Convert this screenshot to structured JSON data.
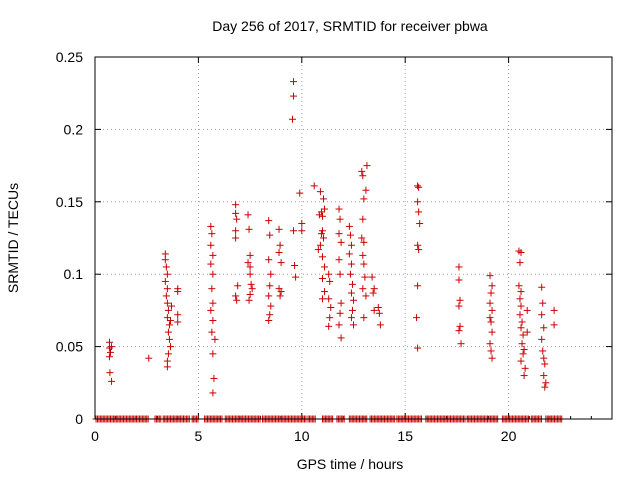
{
  "chart_data": {
    "type": "scatter",
    "title": "Day 256 of 2017, SRMTID for receiver pbwa",
    "xlabel": "GPS time / hours",
    "ylabel": "SRMTID / TECUs",
    "xlim": [
      0,
      25
    ],
    "ylim": [
      0,
      0.25
    ],
    "grid": true,
    "marker": "+",
    "marker_color": "#cc0000",
    "x_ticks": [
      {
        "value": 0,
        "label": "0"
      },
      {
        "value": 5,
        "label": "5"
      },
      {
        "value": 10,
        "label": "10"
      },
      {
        "value": 15,
        "label": "15"
      },
      {
        "value": 20,
        "label": "20"
      }
    ],
    "y_ticks": [
      {
        "value": 0,
        "label": "0"
      },
      {
        "value": 0.05,
        "label": "0.05"
      },
      {
        "value": 0.1,
        "label": "0.1"
      },
      {
        "value": 0.15,
        "label": "0.15"
      },
      {
        "value": 0.2,
        "label": "0.2"
      },
      {
        "value": 0.25,
        "label": "0.25"
      }
    ],
    "series": [
      {
        "name": "pbwa",
        "points": [
          [
            0.7,
            0.053
          ],
          [
            0.7,
            0.049
          ],
          [
            0.75,
            0.046
          ],
          [
            0.7,
            0.043
          ],
          [
            0.8,
            0.05
          ],
          [
            0.72,
            0.032
          ],
          [
            0.8,
            0.026
          ],
          [
            2.6,
            0.042
          ],
          [
            3.4,
            0.114
          ],
          [
            3.4,
            0.11
          ],
          [
            3.45,
            0.105
          ],
          [
            3.5,
            0.1
          ],
          [
            3.4,
            0.095
          ],
          [
            3.5,
            0.09
          ],
          [
            3.45,
            0.085
          ],
          [
            3.5,
            0.08
          ],
          [
            3.55,
            0.075
          ],
          [
            3.5,
            0.07
          ],
          [
            3.6,
            0.065
          ],
          [
            3.55,
            0.06
          ],
          [
            3.6,
            0.055
          ],
          [
            3.65,
            0.05
          ],
          [
            3.55,
            0.045
          ],
          [
            3.5,
            0.04
          ],
          [
            3.5,
            0.036
          ],
          [
            3.7,
            0.078
          ],
          [
            3.65,
            0.068
          ],
          [
            4.0,
            0.09
          ],
          [
            4.0,
            0.088
          ],
          [
            4.0,
            0.072
          ],
          [
            4.0,
            0.067
          ],
          [
            5.6,
            0.133
          ],
          [
            5.65,
            0.128
          ],
          [
            5.6,
            0.12
          ],
          [
            5.7,
            0.113
          ],
          [
            5.6,
            0.107
          ],
          [
            5.7,
            0.1
          ],
          [
            5.65,
            0.09
          ],
          [
            5.7,
            0.08
          ],
          [
            5.6,
            0.075
          ],
          [
            5.7,
            0.068
          ],
          [
            5.65,
            0.06
          ],
          [
            5.8,
            0.055
          ],
          [
            5.7,
            0.045
          ],
          [
            5.75,
            0.028
          ],
          [
            5.7,
            0.018
          ],
          [
            6.8,
            0.148
          ],
          [
            6.8,
            0.142
          ],
          [
            6.85,
            0.138
          ],
          [
            6.8,
            0.13
          ],
          [
            6.8,
            0.125
          ],
          [
            6.9,
            0.092
          ],
          [
            6.8,
            0.085
          ],
          [
            6.85,
            0.082
          ],
          [
            7.4,
            0.141
          ],
          [
            7.45,
            0.131
          ],
          [
            7.5,
            0.113
          ],
          [
            7.4,
            0.108
          ],
          [
            7.5,
            0.1
          ],
          [
            7.55,
            0.093
          ],
          [
            7.5,
            0.086
          ],
          [
            7.45,
            0.082
          ],
          [
            7.6,
            0.09
          ],
          [
            7.5,
            0.105
          ],
          [
            8.4,
            0.137
          ],
          [
            8.45,
            0.127
          ],
          [
            8.4,
            0.11
          ],
          [
            8.5,
            0.1
          ],
          [
            8.45,
            0.092
          ],
          [
            8.4,
            0.085
          ],
          [
            8.5,
            0.078
          ],
          [
            8.45,
            0.072
          ],
          [
            8.4,
            0.068
          ],
          [
            8.9,
            0.131
          ],
          [
            8.95,
            0.12
          ],
          [
            8.9,
            0.115
          ],
          [
            9.0,
            0.108
          ],
          [
            8.9,
            0.09
          ],
          [
            8.95,
            0.085
          ],
          [
            9.0,
            0.088
          ],
          [
            9.6,
            0.233
          ],
          [
            9.6,
            0.223
          ],
          [
            9.55,
            0.207
          ],
          [
            9.6,
            0.13
          ],
          [
            9.65,
            0.106
          ],
          [
            9.7,
            0.098
          ],
          [
            9.9,
            0.156
          ],
          [
            10.0,
            0.135
          ],
          [
            10.0,
            0.13
          ],
          [
            10.6,
            0.161
          ],
          [
            10.9,
            0.157
          ],
          [
            10.85,
            0.141
          ],
          [
            10.95,
            0.143
          ],
          [
            11.0,
            0.14
          ],
          [
            11.0,
            0.13
          ],
          [
            10.95,
            0.128
          ],
          [
            11.05,
            0.125
          ],
          [
            10.9,
            0.12
          ],
          [
            11.0,
            0.112
          ],
          [
            11.1,
            0.105
          ],
          [
            11.0,
            0.097
          ],
          [
            11.1,
            0.088
          ],
          [
            11.0,
            0.083
          ],
          [
            11.1,
            0.145
          ],
          [
            11.05,
            0.152
          ],
          [
            10.8,
            0.117
          ],
          [
            11.3,
            0.1
          ],
          [
            11.35,
            0.095
          ],
          [
            11.3,
            0.083
          ],
          [
            11.4,
            0.077
          ],
          [
            11.35,
            0.07
          ],
          [
            11.3,
            0.064
          ],
          [
            11.8,
            0.145
          ],
          [
            11.85,
            0.138
          ],
          [
            11.8,
            0.128
          ],
          [
            11.9,
            0.122
          ],
          [
            11.8,
            0.11
          ],
          [
            11.85,
            0.1
          ],
          [
            11.9,
            0.08
          ],
          [
            11.85,
            0.073
          ],
          [
            11.8,
            0.065
          ],
          [
            11.9,
            0.056
          ],
          [
            12.3,
            0.133
          ],
          [
            12.35,
            0.127
          ],
          [
            12.4,
            0.12
          ],
          [
            12.3,
            0.114
          ],
          [
            12.4,
            0.107
          ],
          [
            12.35,
            0.1
          ],
          [
            12.45,
            0.093
          ],
          [
            12.4,
            0.087
          ],
          [
            12.5,
            0.082
          ],
          [
            12.45,
            0.075
          ],
          [
            12.4,
            0.07
          ],
          [
            12.5,
            0.065
          ],
          [
            12.9,
            0.171
          ],
          [
            12.95,
            0.168
          ],
          [
            13.0,
            0.152
          ],
          [
            12.95,
            0.138
          ],
          [
            12.9,
            0.125
          ],
          [
            13.0,
            0.122
          ],
          [
            12.95,
            0.113
          ],
          [
            13.0,
            0.107
          ],
          [
            13.05,
            0.098
          ],
          [
            12.95,
            0.09
          ],
          [
            13.1,
            0.085
          ],
          [
            13.0,
            0.07
          ],
          [
            13.15,
            0.175
          ],
          [
            13.1,
            0.158
          ],
          [
            13.4,
            0.098
          ],
          [
            13.5,
            0.09
          ],
          [
            13.45,
            0.087
          ],
          [
            13.5,
            0.075
          ],
          [
            13.7,
            0.077
          ],
          [
            13.75,
            0.073
          ],
          [
            13.8,
            0.065
          ],
          [
            15.6,
            0.161
          ],
          [
            15.65,
            0.16
          ],
          [
            15.6,
            0.15
          ],
          [
            15.65,
            0.143
          ],
          [
            15.7,
            0.135
          ],
          [
            15.6,
            0.12
          ],
          [
            15.65,
            0.117
          ],
          [
            15.6,
            0.092
          ],
          [
            15.55,
            0.07
          ],
          [
            15.6,
            0.049
          ],
          [
            17.6,
            0.105
          ],
          [
            17.6,
            0.096
          ],
          [
            17.65,
            0.082
          ],
          [
            17.6,
            0.078
          ],
          [
            17.65,
            0.064
          ],
          [
            17.6,
            0.061
          ],
          [
            17.7,
            0.052
          ],
          [
            19.1,
            0.099
          ],
          [
            19.2,
            0.092
          ],
          [
            19.15,
            0.087
          ],
          [
            19.1,
            0.08
          ],
          [
            19.2,
            0.075
          ],
          [
            19.1,
            0.07
          ],
          [
            19.15,
            0.067
          ],
          [
            19.2,
            0.06
          ],
          [
            19.1,
            0.052
          ],
          [
            19.15,
            0.047
          ],
          [
            19.2,
            0.042
          ],
          [
            20.5,
            0.116
          ],
          [
            20.6,
            0.115
          ],
          [
            20.55,
            0.108
          ],
          [
            20.5,
            0.092
          ],
          [
            20.6,
            0.088
          ],
          [
            20.55,
            0.083
          ],
          [
            20.6,
            0.078
          ],
          [
            20.55,
            0.072
          ],
          [
            20.65,
            0.067
          ],
          [
            20.6,
            0.063
          ],
          [
            20.7,
            0.058
          ],
          [
            20.65,
            0.052
          ],
          [
            20.75,
            0.048
          ],
          [
            20.7,
            0.045
          ],
          [
            20.6,
            0.04
          ],
          [
            20.8,
            0.035
          ],
          [
            20.75,
            0.03
          ],
          [
            20.9,
            0.06
          ],
          [
            20.9,
            0.075
          ],
          [
            21.6,
            0.091
          ],
          [
            21.65,
            0.08
          ],
          [
            21.6,
            0.072
          ],
          [
            21.7,
            0.063
          ],
          [
            21.6,
            0.055
          ],
          [
            21.65,
            0.047
          ],
          [
            21.7,
            0.042
          ],
          [
            21.75,
            0.038
          ],
          [
            21.7,
            0.03
          ],
          [
            21.8,
            0.025
          ],
          [
            21.75,
            0.022
          ],
          [
            22.2,
            0.075
          ],
          [
            22.2,
            0.065
          ]
        ]
      }
    ],
    "baseline_segments": [
      [
        0.05,
        2.6
      ],
      [
        2.9,
        3.2
      ],
      [
        3.3,
        4.6
      ],
      [
        4.7,
        5.0
      ],
      [
        5.3,
        6.2
      ],
      [
        6.3,
        8.0
      ],
      [
        8.1,
        10.2
      ],
      [
        10.3,
        10.7
      ],
      [
        11.0,
        11.5
      ],
      [
        11.7,
        12.1
      ],
      [
        12.3,
        13.2
      ],
      [
        13.3,
        14.5
      ],
      [
        14.6,
        15.8
      ],
      [
        16.0,
        17.9
      ],
      [
        18.0,
        19.5
      ],
      [
        19.7,
        21.0
      ],
      [
        21.1,
        21.6
      ],
      [
        21.8,
        22.6
      ]
    ]
  }
}
